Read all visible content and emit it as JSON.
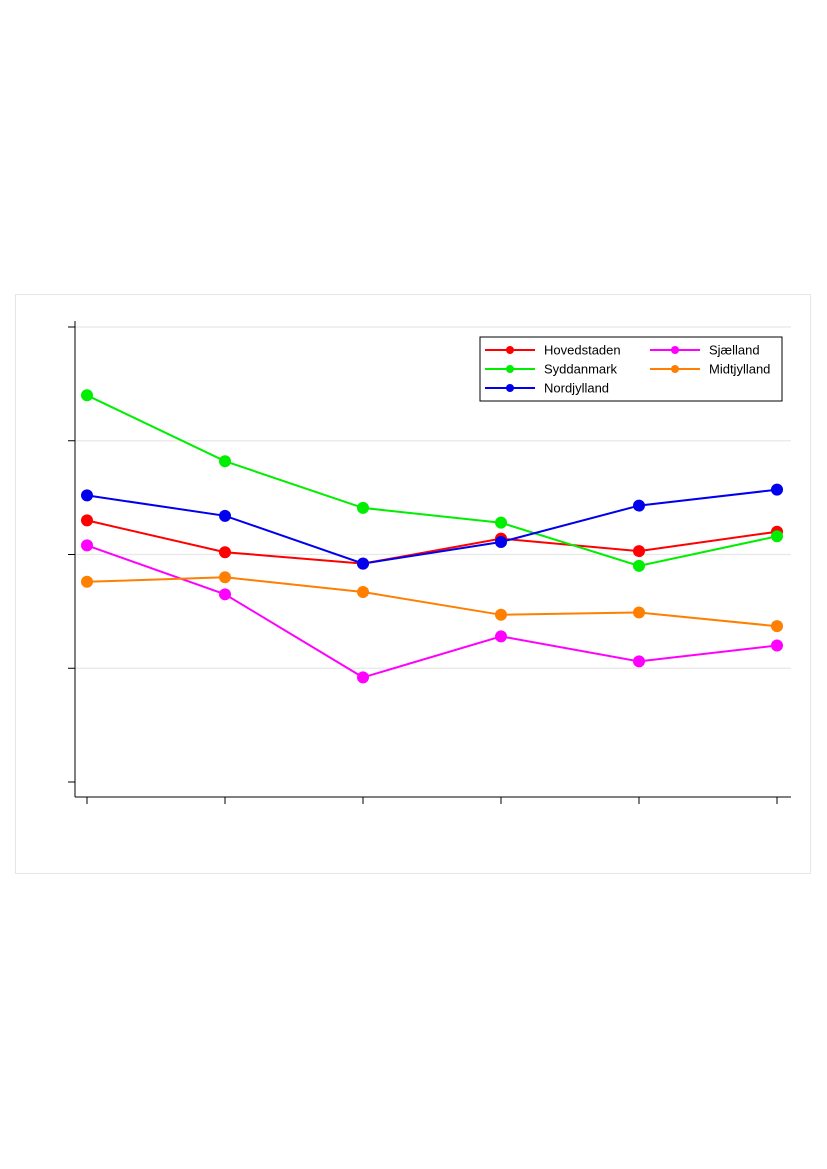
{
  "chart_data": {
    "type": "line",
    "title": "",
    "xlabel": "",
    "ylabel": "",
    "x": [
      1,
      2,
      3,
      4,
      5,
      6
    ],
    "ylim": [
      0,
      4
    ],
    "yticks": [
      0,
      1,
      2,
      3,
      4
    ],
    "grid": true,
    "legend_position": "top-right",
    "series": [
      {
        "name": "Hovedstaden",
        "color": "#ff0000",
        "values": [
          2.3,
          2.02,
          1.92,
          2.14,
          2.03,
          2.2
        ]
      },
      {
        "name": "Syddanmark",
        "color": "#00ee00",
        "values": [
          3.4,
          2.82,
          2.41,
          2.28,
          1.9,
          2.16
        ]
      },
      {
        "name": "Nordjylland",
        "color": "#0000ee",
        "values": [
          2.52,
          2.34,
          1.92,
          2.11,
          2.43,
          2.57
        ]
      },
      {
        "name": "Sjælland",
        "color": "#ff00ff",
        "values": [
          2.08,
          1.65,
          0.92,
          1.28,
          1.06,
          1.2
        ]
      },
      {
        "name": "Midtjylland",
        "color": "#ff7f00",
        "values": [
          1.76,
          1.8,
          1.67,
          1.47,
          1.49,
          1.37
        ]
      }
    ]
  }
}
